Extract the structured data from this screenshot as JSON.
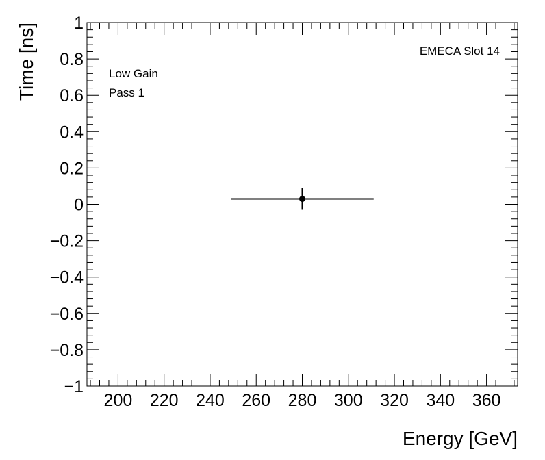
{
  "chart_data": {
    "type": "scatter",
    "title": "",
    "xlabel": "Energy [GeV]",
    "ylabel": "Time [ns]",
    "xlim": [
      186.5,
      373.5
    ],
    "ylim": [
      -1,
      1
    ],
    "x_major_ticks": [
      200,
      220,
      240,
      260,
      280,
      300,
      320,
      340,
      360
    ],
    "x_tick_labels": [
      "200",
      "220",
      "240",
      "260",
      "280",
      "300",
      "320",
      "340",
      "360"
    ],
    "x_minor_step": 4,
    "y_major_ticks": [
      -1,
      -0.8,
      -0.6,
      -0.4,
      -0.2,
      0,
      0.2,
      0.4,
      0.6,
      0.8,
      1
    ],
    "y_tick_labels": [
      "−1",
      "−0.8",
      "−0.6",
      "−0.4",
      "−0.2",
      "0",
      "0.2",
      "0.4",
      "0.6",
      "0.8",
      "1"
    ],
    "y_minor_step": 0.04,
    "grid": false,
    "series": [
      {
        "points": [
          {
            "x": 280,
            "y": 0.03,
            "xerr_low": 31,
            "xerr_high": 31,
            "yerr_low": 0.06,
            "yerr_high": 0.06
          }
        ]
      }
    ],
    "annotations": {
      "top_right": "EMECA Slot 14",
      "top_left_line1": "Low Gain",
      "top_left_line2": "Pass 1"
    }
  }
}
